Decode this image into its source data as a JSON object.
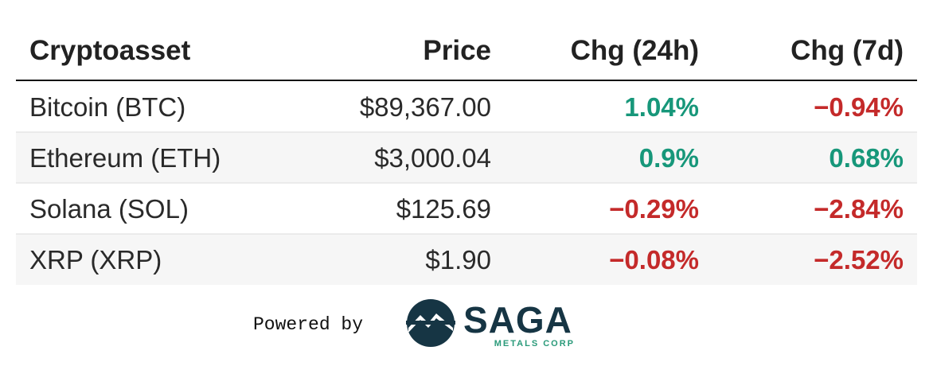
{
  "table": {
    "columns": [
      "Cryptoasset",
      "Price",
      "Chg (24h)",
      "Chg (7d)"
    ],
    "rows": [
      [
        "Bitcoin (BTC)",
        "$89,367.00",
        "1.04%",
        "−0.94%"
      ],
      [
        "Ethereum (ETH)",
        "$3,000.04",
        "0.9%",
        "0.68%"
      ],
      [
        "Solana (SOL)",
        "$125.69",
        "−0.29%",
        "−2.84%"
      ],
      [
        "XRP (XRP)",
        "$1.90",
        "−0.08%",
        "−2.52%"
      ]
    ]
  },
  "footer": {
    "powered_by": "Powered by",
    "logo_name": "SAGA",
    "logo_tagline": "METALS CORP"
  }
}
